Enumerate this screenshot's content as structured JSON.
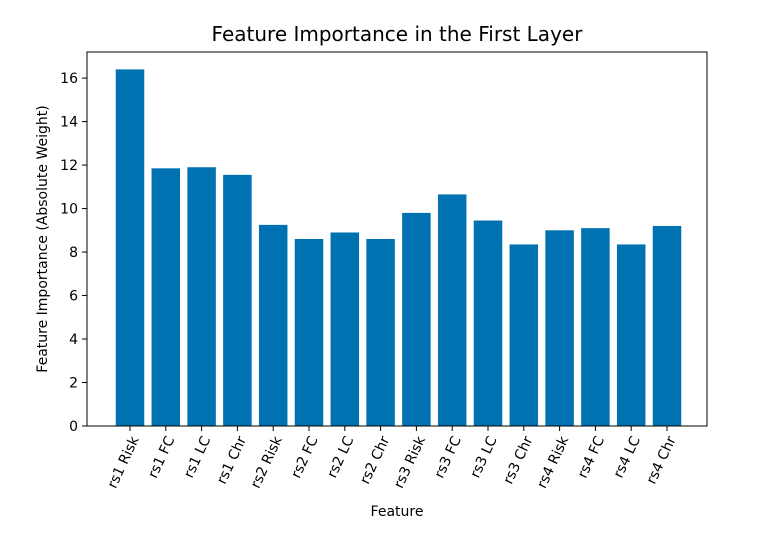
{
  "chart_data": {
    "type": "bar",
    "title": "Feature Importance in the First Layer",
    "xlabel": "Feature",
    "ylabel": "Feature Importance (Absolute Weight)",
    "categories": [
      "rs1 Risk",
      "rs1 FC",
      "rs1 LC",
      "rs1 Chr",
      "rs2 Risk",
      "rs2 FC",
      "rs2 LC",
      "rs2 Chr",
      "rs3 Risk",
      "rs3 FC",
      "rs3 LC",
      "rs3 Chr",
      "rs4 Risk",
      "rs4 FC",
      "rs4 LC",
      "rs4 Chr"
    ],
    "values": [
      16.4,
      11.85,
      11.9,
      11.55,
      9.25,
      8.6,
      8.9,
      8.6,
      9.8,
      10.65,
      9.45,
      8.35,
      9.0,
      9.1,
      8.35,
      9.2
    ],
    "ylim": [
      0,
      17.2
    ],
    "yticks": [
      0,
      2,
      4,
      6,
      8,
      10,
      12,
      14,
      16
    ],
    "bar_color": "#0072b2",
    "grid": false
  }
}
